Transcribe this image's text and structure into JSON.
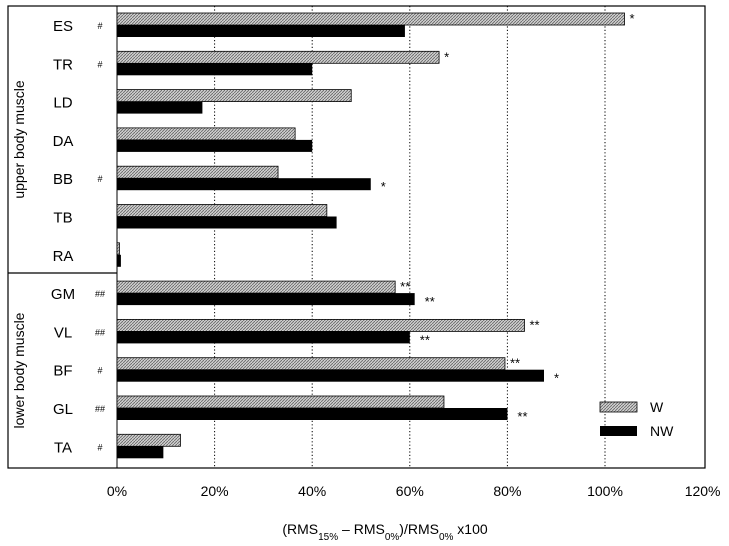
{
  "chart_data": {
    "type": "bar",
    "orientation": "horizontal",
    "categories": [
      "ES",
      "TR",
      "LD",
      "DA",
      "BB",
      "TB",
      "RA",
      "GM",
      "VL",
      "BF",
      "GL",
      "TA"
    ],
    "groups": [
      {
        "label": "upper body muscle",
        "categories": [
          "ES",
          "TR",
          "LD",
          "DA",
          "BB",
          "TB",
          "RA"
        ]
      },
      {
        "label": "lower body muscle",
        "categories": [
          "GM",
          "VL",
          "BF",
          "GL",
          "TA"
        ]
      }
    ],
    "series": [
      {
        "name": "W",
        "color": "#b4b4b4",
        "pattern": "crosshatch",
        "values": [
          104,
          66,
          48,
          36.5,
          33,
          43,
          0.5,
          57,
          83.5,
          79.5,
          67,
          13
        ],
        "annotations": [
          "*",
          "*",
          "",
          "",
          "",
          "",
          "",
          "**",
          "**",
          "**",
          "",
          ""
        ]
      },
      {
        "name": "NW",
        "color": "#000000",
        "values": [
          59,
          40,
          17.5,
          40,
          52,
          45,
          0.8,
          61,
          60,
          87.5,
          80,
          9.5
        ],
        "annotations": [
          "",
          "",
          "",
          "",
          "*",
          "",
          "",
          "**",
          "**",
          "*",
          "**",
          ""
        ]
      }
    ],
    "category_marks": [
      "#",
      "#",
      "",
      "",
      "#",
      "",
      "",
      "##",
      "##",
      "#",
      "##",
      "#"
    ],
    "x_ticks": [
      "0%",
      "20%",
      "40%",
      "60%",
      "80%",
      "100%",
      "120%"
    ],
    "xlim": [
      0,
      120
    ],
    "gridlines": [
      20,
      40,
      60,
      80,
      100
    ],
    "grid_style": "dotted vertical",
    "xlabel": {
      "p1": "(RMS",
      "s1": "15%",
      "p2": " – RMS",
      "s2": "0%",
      "p3": ")/RMS",
      "s3": "0%",
      "p4": " x100"
    },
    "legend": {
      "position": "bottom-right",
      "entries": [
        "W",
        "NW"
      ]
    }
  }
}
